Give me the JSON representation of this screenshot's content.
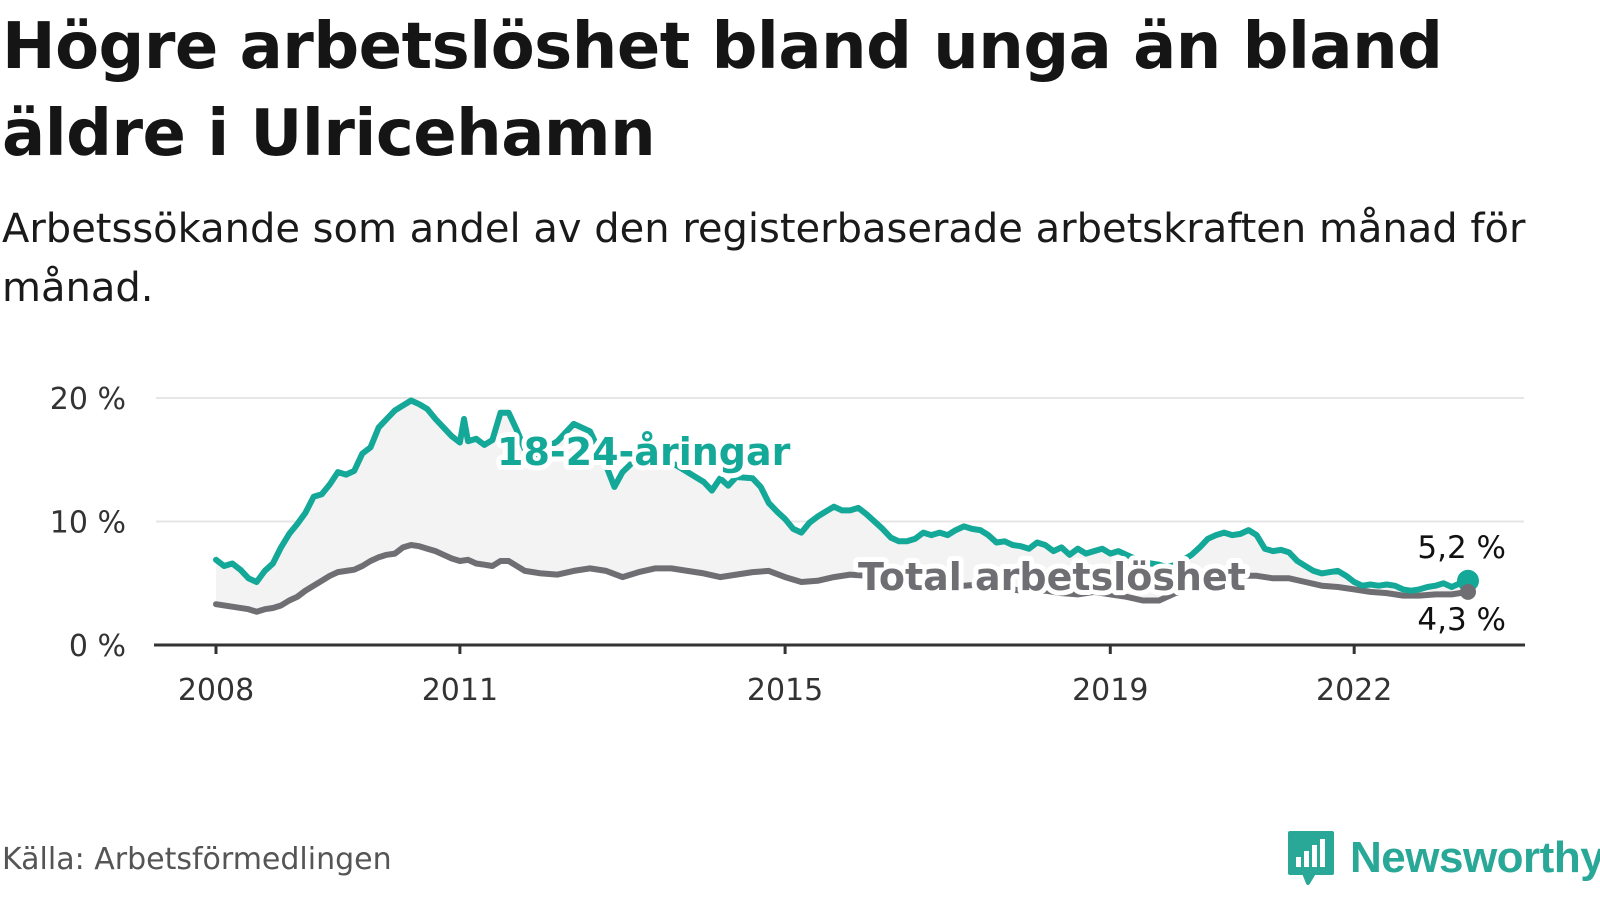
{
  "title": "Högre arbetslöshet bland unga än bland äldre i Ulricehamn",
  "subtitle": "Arbetssökande som andel av den registerbaserade arbetskraften månad för månad.",
  "source": "Källa: Arbetsförmedlingen",
  "logo": {
    "name": "Newsworthy"
  },
  "colors": {
    "youth": "#14a898",
    "total": "#6f6f73",
    "grid": "#e6e6e6",
    "axis": "#333333",
    "band": "#f3f3f3"
  },
  "chart_data": {
    "type": "line",
    "title": "Högre arbetslöshet bland unga än bland äldre i Ulricehamn",
    "xlabel": "",
    "ylabel": "",
    "ylim": [
      0,
      20
    ],
    "yticks": [
      0,
      10,
      20
    ],
    "ytick_labels": [
      "0 %",
      "10 %",
      "20 %"
    ],
    "xlim": [
      2008.0,
      2023.8
    ],
    "xticks": [
      2008,
      2011,
      2015,
      2019,
      2022
    ],
    "xtick_labels": [
      "2008",
      "2011",
      "2015",
      "2019",
      "2022"
    ],
    "grid": true,
    "series": [
      {
        "name": "18-24-åringar",
        "label": "18-24-åringar",
        "end_label": "5,2 %",
        "end_value": 5.2,
        "points": [
          [
            2008.0,
            6.9
          ],
          [
            2008.1,
            6.4
          ],
          [
            2008.2,
            6.6
          ],
          [
            2008.3,
            6.1
          ],
          [
            2008.4,
            5.4
          ],
          [
            2008.5,
            5.1
          ],
          [
            2008.6,
            6.0
          ],
          [
            2008.7,
            6.6
          ],
          [
            2008.8,
            7.9
          ],
          [
            2008.9,
            9.0
          ],
          [
            2009.0,
            9.8
          ],
          [
            2009.1,
            10.7
          ],
          [
            2009.2,
            12.0
          ],
          [
            2009.3,
            12.2
          ],
          [
            2009.4,
            13.0
          ],
          [
            2009.5,
            14.0
          ],
          [
            2009.6,
            13.8
          ],
          [
            2009.7,
            14.1
          ],
          [
            2009.8,
            15.5
          ],
          [
            2009.9,
            16.0
          ],
          [
            2010.0,
            17.6
          ],
          [
            2010.1,
            18.3
          ],
          [
            2010.2,
            19.0
          ],
          [
            2010.3,
            19.4
          ],
          [
            2010.4,
            19.8
          ],
          [
            2010.5,
            19.5
          ],
          [
            2010.6,
            19.1
          ],
          [
            2010.7,
            18.3
          ],
          [
            2010.8,
            17.6
          ],
          [
            2010.9,
            16.9
          ],
          [
            2011.0,
            16.4
          ],
          [
            2011.05,
            18.3
          ],
          [
            2011.1,
            16.5
          ],
          [
            2011.2,
            16.7
          ],
          [
            2011.3,
            16.2
          ],
          [
            2011.4,
            16.6
          ],
          [
            2011.5,
            18.8
          ],
          [
            2011.6,
            18.8
          ],
          [
            2011.7,
            17.4
          ],
          [
            2011.8,
            15.8
          ],
          [
            2011.9,
            15.3
          ],
          [
            2012.2,
            16.5
          ],
          [
            2012.4,
            17.9
          ],
          [
            2012.6,
            17.3
          ],
          [
            2012.8,
            14.5
          ],
          [
            2012.9,
            12.8
          ],
          [
            2013.0,
            14.0
          ],
          [
            2013.3,
            15.9
          ],
          [
            2013.7,
            14.4
          ],
          [
            2014.0,
            13.2
          ],
          [
            2014.1,
            12.5
          ],
          [
            2014.2,
            13.5
          ],
          [
            2014.3,
            12.9
          ],
          [
            2014.4,
            13.6
          ],
          [
            2014.6,
            13.5
          ],
          [
            2014.7,
            12.8
          ],
          [
            2014.8,
            11.5
          ],
          [
            2014.9,
            10.8
          ],
          [
            2015.0,
            10.2
          ],
          [
            2015.1,
            9.4
          ],
          [
            2015.2,
            9.1
          ],
          [
            2015.3,
            9.9
          ],
          [
            2015.4,
            10.4
          ],
          [
            2015.5,
            10.8
          ],
          [
            2015.6,
            11.2
          ],
          [
            2015.7,
            10.9
          ],
          [
            2015.8,
            10.9
          ],
          [
            2015.9,
            11.1
          ],
          [
            2016.0,
            10.6
          ],
          [
            2016.1,
            10.0
          ],
          [
            2016.2,
            9.4
          ],
          [
            2016.3,
            8.7
          ],
          [
            2016.4,
            8.4
          ],
          [
            2016.5,
            8.4
          ],
          [
            2016.6,
            8.6
          ],
          [
            2016.7,
            9.1
          ],
          [
            2016.8,
            8.9
          ],
          [
            2016.9,
            9.1
          ],
          [
            2017.0,
            8.9
          ],
          [
            2017.1,
            9.3
          ],
          [
            2017.2,
            9.6
          ],
          [
            2017.3,
            9.4
          ],
          [
            2017.4,
            9.3
          ],
          [
            2017.5,
            8.9
          ],
          [
            2017.6,
            8.3
          ],
          [
            2017.7,
            8.4
          ],
          [
            2017.8,
            8.1
          ],
          [
            2017.9,
            8.0
          ],
          [
            2018.0,
            7.8
          ],
          [
            2018.1,
            8.3
          ],
          [
            2018.2,
            8.1
          ],
          [
            2018.3,
            7.6
          ],
          [
            2018.4,
            7.9
          ],
          [
            2018.5,
            7.3
          ],
          [
            2018.6,
            7.8
          ],
          [
            2018.7,
            7.4
          ],
          [
            2018.8,
            7.6
          ],
          [
            2018.9,
            7.8
          ],
          [
            2019.0,
            7.4
          ],
          [
            2019.1,
            7.6
          ],
          [
            2019.2,
            7.3
          ],
          [
            2019.3,
            7.0
          ],
          [
            2019.4,
            6.8
          ],
          [
            2019.5,
            6.6
          ],
          [
            2019.6,
            6.5
          ],
          [
            2019.7,
            6.3
          ],
          [
            2019.8,
            6.5
          ],
          [
            2019.9,
            6.9
          ],
          [
            2020.0,
            7.3
          ],
          [
            2020.1,
            7.9
          ],
          [
            2020.2,
            8.6
          ],
          [
            2020.3,
            8.9
          ],
          [
            2020.4,
            9.1
          ],
          [
            2020.5,
            8.9
          ],
          [
            2020.6,
            9.0
          ],
          [
            2020.7,
            9.3
          ],
          [
            2020.8,
            8.9
          ],
          [
            2020.9,
            7.8
          ],
          [
            2021.0,
            7.6
          ],
          [
            2021.1,
            7.7
          ],
          [
            2021.2,
            7.5
          ],
          [
            2021.3,
            6.8
          ],
          [
            2021.4,
            6.4
          ],
          [
            2021.5,
            6.0
          ],
          [
            2021.6,
            5.8
          ],
          [
            2021.7,
            5.9
          ],
          [
            2021.8,
            6.0
          ],
          [
            2021.9,
            5.6
          ],
          [
            2022.0,
            5.1
          ],
          [
            2022.1,
            4.8
          ],
          [
            2022.2,
            4.9
          ],
          [
            2022.3,
            4.8
          ],
          [
            2022.4,
            4.9
          ],
          [
            2022.5,
            4.8
          ],
          [
            2022.6,
            4.5
          ],
          [
            2022.7,
            4.4
          ],
          [
            2022.8,
            4.5
          ],
          [
            2022.9,
            4.7
          ],
          [
            2023.0,
            4.8
          ],
          [
            2023.1,
            5.0
          ],
          [
            2023.2,
            4.7
          ],
          [
            2023.3,
            5.0
          ],
          [
            2023.4,
            5.2
          ]
        ]
      },
      {
        "name": "Total arbetslöshet",
        "label": "Total arbetslöshet",
        "end_label": "4,3 %",
        "end_value": 4.3,
        "points": [
          [
            2008.0,
            3.3
          ],
          [
            2008.2,
            3.1
          ],
          [
            2008.4,
            2.9
          ],
          [
            2008.5,
            2.7
          ],
          [
            2008.6,
            2.9
          ],
          [
            2008.7,
            3.0
          ],
          [
            2008.8,
            3.2
          ],
          [
            2008.9,
            3.6
          ],
          [
            2009.0,
            3.9
          ],
          [
            2009.1,
            4.4
          ],
          [
            2009.2,
            4.8
          ],
          [
            2009.3,
            5.2
          ],
          [
            2009.4,
            5.6
          ],
          [
            2009.5,
            5.9
          ],
          [
            2009.6,
            6.0
          ],
          [
            2009.7,
            6.1
          ],
          [
            2009.8,
            6.4
          ],
          [
            2009.9,
            6.8
          ],
          [
            2010.0,
            7.1
          ],
          [
            2010.1,
            7.3
          ],
          [
            2010.2,
            7.4
          ],
          [
            2010.3,
            7.9
          ],
          [
            2010.4,
            8.1
          ],
          [
            2010.5,
            8.0
          ],
          [
            2010.6,
            7.8
          ],
          [
            2010.7,
            7.6
          ],
          [
            2010.8,
            7.3
          ],
          [
            2010.9,
            7.0
          ],
          [
            2011.0,
            6.8
          ],
          [
            2011.1,
            6.9
          ],
          [
            2011.2,
            6.6
          ],
          [
            2011.3,
            6.5
          ],
          [
            2011.4,
            6.4
          ],
          [
            2011.5,
            6.8
          ],
          [
            2011.6,
            6.8
          ],
          [
            2011.7,
            6.4
          ],
          [
            2011.8,
            6.0
          ],
          [
            2011.9,
            5.9
          ],
          [
            2012.0,
            5.8
          ],
          [
            2012.2,
            5.7
          ],
          [
            2012.4,
            6.0
          ],
          [
            2012.6,
            6.2
          ],
          [
            2012.8,
            6.0
          ],
          [
            2013.0,
            5.5
          ],
          [
            2013.2,
            5.9
          ],
          [
            2013.4,
            6.2
          ],
          [
            2013.6,
            6.2
          ],
          [
            2013.8,
            6.0
          ],
          [
            2014.0,
            5.8
          ],
          [
            2014.2,
            5.5
          ],
          [
            2014.4,
            5.7
          ],
          [
            2014.6,
            5.9
          ],
          [
            2014.8,
            6.0
          ],
          [
            2015.0,
            5.5
          ],
          [
            2015.2,
            5.1
          ],
          [
            2015.4,
            5.2
          ],
          [
            2015.6,
            5.5
          ],
          [
            2015.8,
            5.7
          ],
          [
            2016.0,
            5.6
          ],
          [
            2016.2,
            5.2
          ],
          [
            2016.4,
            5.0
          ],
          [
            2016.6,
            4.9
          ],
          [
            2016.8,
            5.0
          ],
          [
            2017.0,
            4.9
          ],
          [
            2017.2,
            4.8
          ],
          [
            2017.4,
            4.9
          ],
          [
            2017.6,
            4.6
          ],
          [
            2017.8,
            4.5
          ],
          [
            2018.0,
            4.3
          ],
          [
            2018.2,
            4.4
          ],
          [
            2018.4,
            4.2
          ],
          [
            2018.6,
            4.1
          ],
          [
            2018.8,
            4.3
          ],
          [
            2019.0,
            4.1
          ],
          [
            2019.2,
            3.9
          ],
          [
            2019.4,
            3.6
          ],
          [
            2019.6,
            3.6
          ],
          [
            2019.8,
            4.2
          ],
          [
            2020.0,
            4.6
          ],
          [
            2020.2,
            5.1
          ],
          [
            2020.4,
            5.4
          ],
          [
            2020.6,
            5.6
          ],
          [
            2020.8,
            5.6
          ],
          [
            2021.0,
            5.4
          ],
          [
            2021.2,
            5.4
          ],
          [
            2021.4,
            5.1
          ],
          [
            2021.6,
            4.8
          ],
          [
            2021.8,
            4.7
          ],
          [
            2022.0,
            4.5
          ],
          [
            2022.2,
            4.3
          ],
          [
            2022.4,
            4.2
          ],
          [
            2022.6,
            4.0
          ],
          [
            2022.8,
            4.0
          ],
          [
            2023.0,
            4.1
          ],
          [
            2023.2,
            4.1
          ],
          [
            2023.4,
            4.3
          ]
        ]
      }
    ]
  }
}
